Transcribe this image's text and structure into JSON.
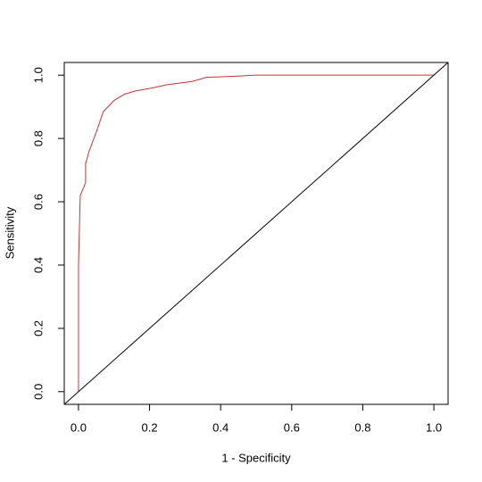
{
  "chart_data": {
    "type": "line",
    "xlabel": "1 - Specificity",
    "ylabel": "Sensitivity",
    "xlim": [
      -0.04,
      1.04
    ],
    "ylim": [
      -0.04,
      1.04
    ],
    "xticks": [
      {
        "value": 0,
        "label": "0.0"
      },
      {
        "value": 0.2,
        "label": "0.2"
      },
      {
        "value": 0.4,
        "label": "0.4"
      },
      {
        "value": 0.6,
        "label": "0.6"
      },
      {
        "value": 0.8,
        "label": "0.8"
      },
      {
        "value": 1,
        "label": "1.0"
      }
    ],
    "yticks": [
      {
        "value": 0,
        "label": "0.0"
      },
      {
        "value": 0.2,
        "label": "0.2"
      },
      {
        "value": 0.4,
        "label": "0.4"
      },
      {
        "value": 0.6,
        "label": "0.6"
      },
      {
        "value": 0.8,
        "label": "0.8"
      },
      {
        "value": 1,
        "label": "1.0"
      }
    ],
    "series": [
      {
        "color": "#cc3333",
        "x": [
          0,
          0,
          0.005,
          0.02,
          0.02,
          0.03,
          0.05,
          0.07,
          0.1,
          0.13,
          0.16,
          0.2,
          0.25,
          0.32,
          0.36,
          0.45,
          0.5,
          1
        ],
        "values": [
          0,
          0.4,
          0.62,
          0.66,
          0.72,
          0.76,
          0.82,
          0.885,
          0.92,
          0.94,
          0.95,
          0.958,
          0.97,
          0.98,
          0.993,
          0.997,
          1,
          1
        ]
      },
      {
        "color": "#000000",
        "x": [
          -0.04,
          1.04
        ],
        "values": [
          -0.04,
          1.04
        ]
      }
    ]
  }
}
